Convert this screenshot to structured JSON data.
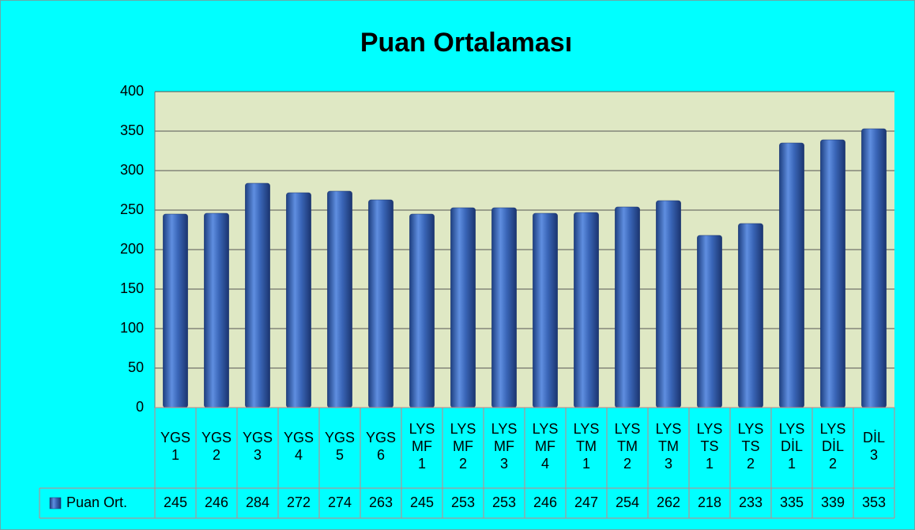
{
  "chart_data": {
    "type": "bar",
    "title": "Puan Ortalaması",
    "categories": [
      [
        "YGS",
        "1"
      ],
      [
        "YGS",
        "2"
      ],
      [
        "YGS",
        "3"
      ],
      [
        "YGS",
        "4"
      ],
      [
        "YGS",
        "5"
      ],
      [
        "YGS",
        "6"
      ],
      [
        "LYS",
        "MF",
        "1"
      ],
      [
        "LYS",
        "MF",
        "2"
      ],
      [
        "LYS",
        "MF",
        "3"
      ],
      [
        "LYS",
        "MF",
        "4"
      ],
      [
        "LYS",
        "TM",
        "1"
      ],
      [
        "LYS",
        "TM",
        "2"
      ],
      [
        "LYS",
        "TM",
        "3"
      ],
      [
        "LYS",
        "TS",
        "1"
      ],
      [
        "LYS",
        "TS",
        "2"
      ],
      [
        "LYS",
        "DİL",
        "1"
      ],
      [
        "LYS",
        "DİL",
        "2"
      ],
      [
        "DİL",
        "3"
      ]
    ],
    "series": [
      {
        "name": "Puan Ort.",
        "color": "#3a66b8",
        "values": [
          245,
          246,
          284,
          272,
          274,
          263,
          245,
          253,
          253,
          246,
          247,
          254,
          262,
          218,
          233,
          335,
          339,
          353
        ]
      }
    ],
    "ylim": [
      0,
      400
    ],
    "yticks": [
      0,
      50,
      100,
      150,
      200,
      250,
      300,
      350,
      400
    ],
    "grid": true,
    "data_table": true
  }
}
